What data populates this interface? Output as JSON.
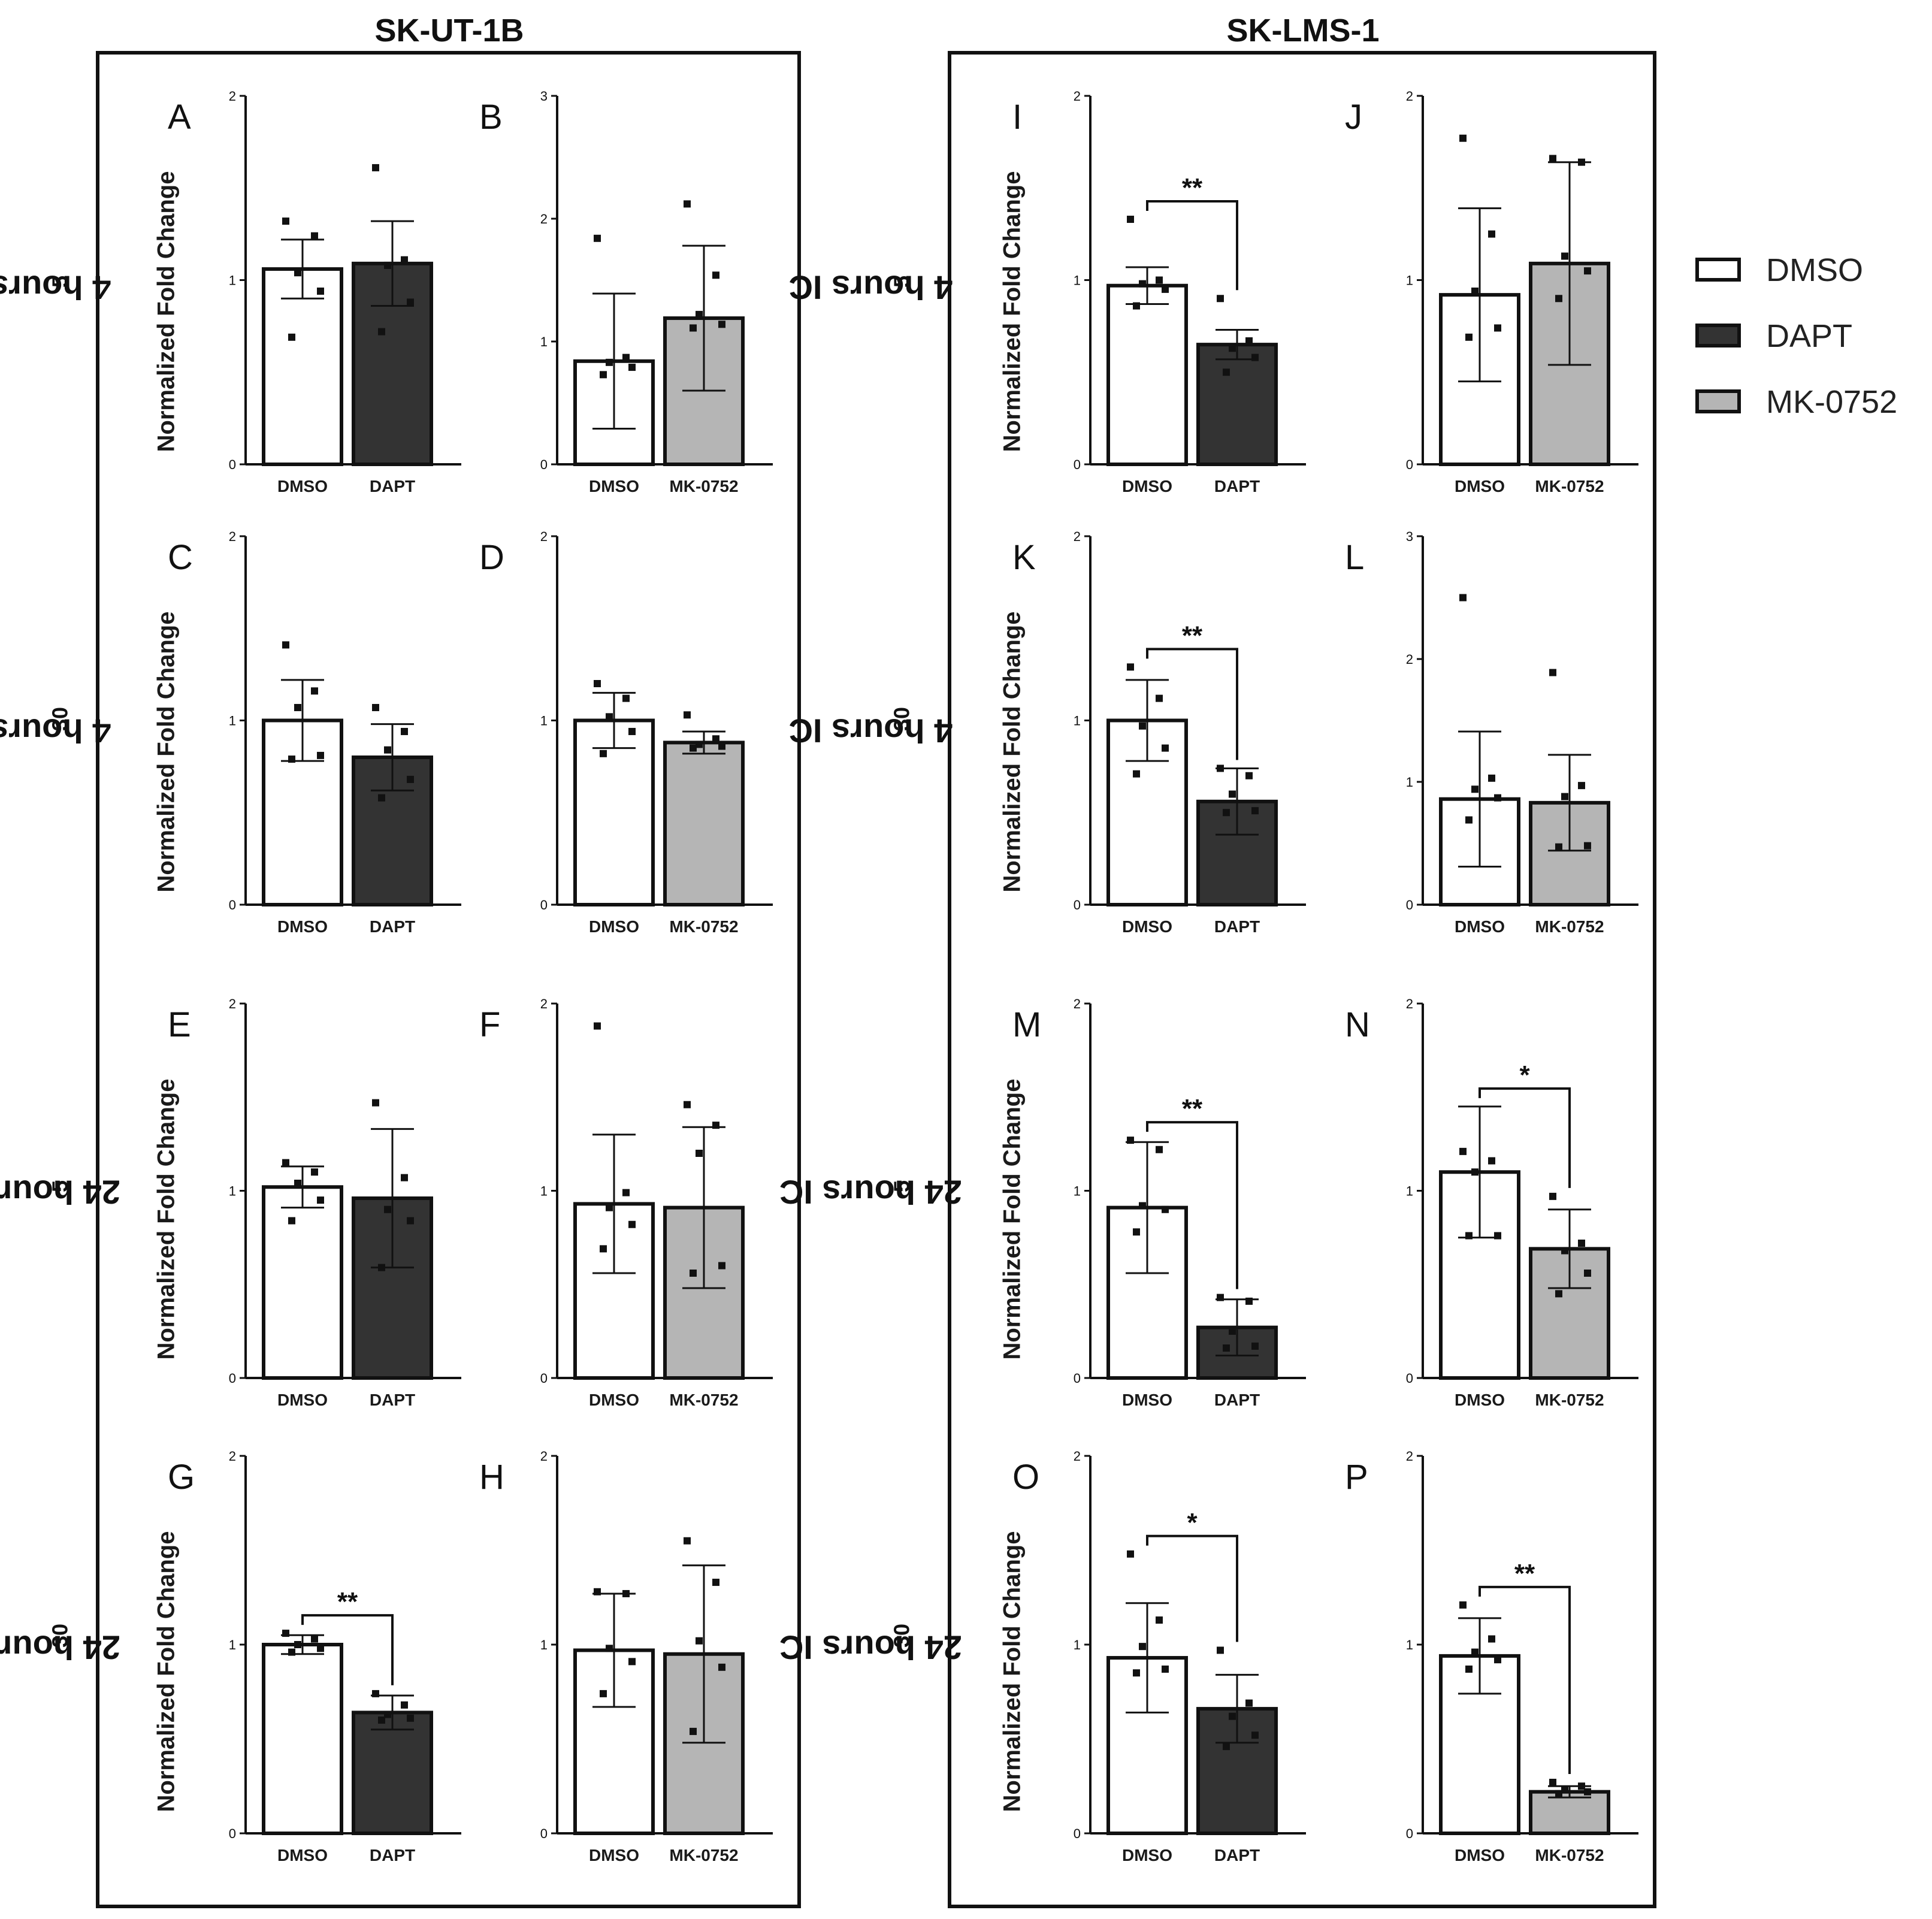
{
  "figure": {
    "groups": [
      {
        "title": "SK-UT-1B"
      },
      {
        "title": "SK-LMS-1"
      }
    ],
    "row_labels": [
      {
        "text": "4 hours IC",
        "sub": "5"
      },
      {
        "text": "4 hours IC",
        "sub": "30"
      },
      {
        "text": "24 hours IC",
        "sub": "5"
      },
      {
        "text": "24 hours IC",
        "sub": "30"
      }
    ],
    "y_axis_label": "Normalized Fold Change",
    "legend": [
      {
        "label": "DMSO",
        "color": "#ffffff"
      },
      {
        "label": "DAPT",
        "color": "#333333"
      },
      {
        "label": "MK-0752",
        "color": "#b5b5b5"
      }
    ]
  },
  "colors": {
    "DMSO": "#ffffff",
    "DAPT": "#333333",
    "MK-0752": "#b5b5b5",
    "axis": "#111111"
  },
  "chart_data": [
    {
      "panel": "A",
      "type": "bar",
      "group": "SK-UT-1B",
      "row": "4 hours IC5",
      "ylim": [
        0,
        2
      ],
      "yticks": [
        "0",
        "1",
        "2"
      ],
      "categories": [
        "DMSO",
        "DAPT"
      ],
      "values": [
        1.06,
        1.09
      ],
      "errors": [
        0.16,
        0.23
      ],
      "points": [
        [
          1.32,
          1.24,
          1.04,
          0.94,
          0.69
        ],
        [
          1.61,
          1.11,
          1.08,
          0.88,
          0.72
        ]
      ],
      "significance": null
    },
    {
      "panel": "B",
      "type": "bar",
      "group": "SK-UT-1B",
      "row": "4 hours IC5",
      "ylim": [
        0,
        3
      ],
      "yticks": [
        "0",
        "1",
        "2",
        "3"
      ],
      "categories": [
        "DMSO",
        "MK-0752"
      ],
      "values": [
        0.84,
        1.19
      ],
      "errors": [
        0.55,
        0.59
      ],
      "points": [
        [
          1.84,
          0.87,
          0.83,
          0.79,
          0.73
        ],
        [
          2.12,
          1.54,
          1.22,
          1.14,
          1.11
        ]
      ],
      "significance": null
    },
    {
      "panel": "C",
      "type": "bar",
      "group": "SK-UT-1B",
      "row": "4 hours IC30",
      "ylim": [
        0,
        2
      ],
      "yticks": [
        "0",
        "1",
        "2"
      ],
      "categories": [
        "DMSO",
        "DAPT"
      ],
      "values": [
        1.0,
        0.8
      ],
      "errors": [
        0.22,
        0.18
      ],
      "points": [
        [
          1.41,
          1.16,
          1.07,
          0.81,
          0.79
        ],
        [
          1.07,
          0.94,
          0.84,
          0.68,
          0.58
        ]
      ],
      "significance": null
    },
    {
      "panel": "D",
      "type": "bar",
      "group": "SK-UT-1B",
      "row": "4 hours IC30",
      "ylim": [
        0,
        2
      ],
      "yticks": [
        "0",
        "1",
        "2"
      ],
      "categories": [
        "DMSO",
        "MK-0752"
      ],
      "values": [
        1.0,
        0.88
      ],
      "errors": [
        0.15,
        0.06
      ],
      "points": [
        [
          1.2,
          1.12,
          1.02,
          0.94,
          0.82
        ],
        [
          1.03,
          0.9,
          0.87,
          0.86,
          0.85
        ]
      ],
      "significance": null
    },
    {
      "panel": "E",
      "type": "bar",
      "group": "SK-UT-1B",
      "row": "24 hours IC5",
      "ylim": [
        0,
        2
      ],
      "yticks": [
        "0",
        "1",
        "2"
      ],
      "categories": [
        "DMSO",
        "DAPT"
      ],
      "values": [
        1.02,
        0.96
      ],
      "errors": [
        0.11,
        0.37
      ],
      "points": [
        [
          1.15,
          1.1,
          1.04,
          0.95,
          0.84
        ],
        [
          1.47,
          1.07,
          0.9,
          0.84,
          0.59
        ]
      ],
      "significance": null
    },
    {
      "panel": "F",
      "type": "bar",
      "group": "SK-UT-1B",
      "row": "24 hours IC5",
      "ylim": [
        0,
        2
      ],
      "yticks": [
        "0",
        "1",
        "2"
      ],
      "categories": [
        "DMSO",
        "MK-0752"
      ],
      "values": [
        0.93,
        0.91
      ],
      "errors": [
        0.37,
        0.43
      ],
      "points": [
        [
          1.88,
          0.99,
          0.91,
          0.82,
          0.69
        ],
        [
          1.46,
          1.35,
          1.2,
          0.6,
          0.56
        ]
      ],
      "significance": null
    },
    {
      "panel": "G",
      "type": "bar",
      "group": "SK-UT-1B",
      "row": "24 hours IC30",
      "ylim": [
        0,
        2
      ],
      "yticks": [
        "0",
        "1",
        "2"
      ],
      "categories": [
        "DMSO",
        "DAPT"
      ],
      "values": [
        1.0,
        0.64
      ],
      "errors": [
        0.05,
        0.09
      ],
      "points": [
        [
          1.06,
          1.03,
          1.0,
          0.98,
          0.96
        ],
        [
          0.74,
          0.68,
          0.63,
          0.61,
          0.6
        ]
      ],
      "significance": "**"
    },
    {
      "panel": "H",
      "type": "bar",
      "group": "SK-UT-1B",
      "row": "24 hours IC30",
      "ylim": [
        0,
        2
      ],
      "yticks": [
        "0",
        "1",
        "2"
      ],
      "categories": [
        "DMSO",
        "MK-0752"
      ],
      "values": [
        0.97,
        0.95
      ],
      "errors": [
        0.3,
        0.47
      ],
      "points": [
        [
          1.28,
          1.27,
          0.98,
          0.91,
          0.74
        ],
        [
          1.55,
          1.33,
          1.02,
          0.88,
          0.54
        ]
      ],
      "significance": null
    },
    {
      "panel": "I",
      "type": "bar",
      "group": "SK-LMS-1",
      "row": "4 hours IC5",
      "ylim": [
        0,
        2
      ],
      "yticks": [
        "0",
        "1",
        "2"
      ],
      "categories": [
        "DMSO",
        "DAPT"
      ],
      "values": [
        0.97,
        0.65
      ],
      "errors": [
        0.1,
        0.08
      ],
      "points": [
        [
          1.33,
          1.0,
          0.98,
          0.95,
          0.86
        ],
        [
          0.9,
          0.67,
          0.63,
          0.58,
          0.5
        ]
      ],
      "significance": "**"
    },
    {
      "panel": "J",
      "type": "bar",
      "group": "SK-LMS-1",
      "row": "4 hours IC5",
      "ylim": [
        0,
        2
      ],
      "yticks": [
        "0",
        "1",
        "2"
      ],
      "categories": [
        "DMSO",
        "MK-0752"
      ],
      "values": [
        0.92,
        1.09
      ],
      "errors": [
        0.47,
        0.55
      ],
      "points": [
        [
          1.77,
          1.25,
          0.94,
          0.74,
          0.69
        ],
        [
          1.66,
          1.64,
          1.13,
          1.05,
          0.9
        ]
      ],
      "significance": null
    },
    {
      "panel": "K",
      "type": "bar",
      "group": "SK-LMS-1",
      "row": "4 hours IC30",
      "ylim": [
        0,
        2
      ],
      "yticks": [
        "0",
        "1",
        "2"
      ],
      "categories": [
        "DMSO",
        "DAPT"
      ],
      "values": [
        1.0,
        0.56
      ],
      "errors": [
        0.22,
        0.18
      ],
      "points": [
        [
          1.29,
          1.12,
          0.97,
          0.85,
          0.71
        ],
        [
          0.74,
          0.7,
          0.6,
          0.51,
          0.5
        ]
      ],
      "significance": "**"
    },
    {
      "panel": "L",
      "type": "bar",
      "group": "SK-LMS-1",
      "row": "4 hours IC30",
      "ylim": [
        0,
        3
      ],
      "yticks": [
        "0",
        "1",
        "2",
        "3"
      ],
      "categories": [
        "DMSO",
        "MK-0752"
      ],
      "values": [
        0.86,
        0.83
      ],
      "errors": [
        0.55,
        0.39
      ],
      "points": [
        [
          2.5,
          1.03,
          0.94,
          0.87,
          0.69
        ],
        [
          1.89,
          0.97,
          0.88,
          0.48,
          0.47
        ]
      ],
      "significance": null
    },
    {
      "panel": "M",
      "type": "bar",
      "group": "SK-LMS-1",
      "row": "24 hours IC5",
      "ylim": [
        0,
        2
      ],
      "yticks": [
        "0",
        "1",
        "2"
      ],
      "categories": [
        "DMSO",
        "DAPT"
      ],
      "values": [
        0.91,
        0.27
      ],
      "errors": [
        0.35,
        0.15
      ],
      "points": [
        [
          1.27,
          1.22,
          0.92,
          0.9,
          0.78
        ],
        [
          0.43,
          0.41,
          0.25,
          0.17,
          0.16
        ]
      ],
      "significance": "**"
    },
    {
      "panel": "N",
      "type": "bar",
      "group": "SK-LMS-1",
      "row": "24 hours IC5",
      "ylim": [
        0,
        2
      ],
      "yticks": [
        "0",
        "1",
        "2"
      ],
      "categories": [
        "DMSO",
        "MK-0752"
      ],
      "values": [
        1.1,
        0.69
      ],
      "errors": [
        0.35,
        0.21
      ],
      "points": [
        [
          1.21,
          1.16,
          1.1,
          0.76,
          0.76
        ],
        [
          0.97,
          0.72,
          0.68,
          0.56,
          0.45
        ]
      ],
      "significance": "*"
    },
    {
      "panel": "O",
      "type": "bar",
      "group": "SK-LMS-1",
      "row": "24 hours IC30",
      "ylim": [
        0,
        2
      ],
      "yticks": [
        "0",
        "1",
        "2"
      ],
      "categories": [
        "DMSO",
        "DAPT"
      ],
      "values": [
        0.93,
        0.66
      ],
      "errors": [
        0.29,
        0.18
      ],
      "points": [
        [
          1.48,
          1.13,
          0.99,
          0.87,
          0.85
        ],
        [
          0.97,
          0.69,
          0.62,
          0.52,
          0.46
        ]
      ],
      "significance": "*"
    },
    {
      "panel": "P",
      "type": "bar",
      "group": "SK-LMS-1",
      "row": "24 hours IC30",
      "ylim": [
        0,
        2
      ],
      "yticks": [
        "0",
        "1",
        "2"
      ],
      "categories": [
        "DMSO",
        "MK-0752"
      ],
      "values": [
        0.94,
        0.22
      ],
      "errors": [
        0.2,
        0.03
      ],
      "points": [
        [
          1.21,
          1.03,
          0.96,
          0.92,
          0.87
        ],
        [
          0.27,
          0.25,
          0.23,
          0.22,
          0.21
        ]
      ],
      "significance": "**"
    }
  ]
}
